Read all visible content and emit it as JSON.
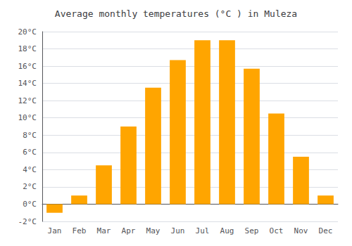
{
  "chart_data": {
    "type": "bar",
    "title": "Average monthly temperatures (°C ) in Muleza",
    "categories": [
      "Jan",
      "Feb",
      "Mar",
      "Apr",
      "May",
      "Jun",
      "Jul",
      "Aug",
      "Sep",
      "Oct",
      "Nov",
      "Dec"
    ],
    "values": [
      -1.0,
      1.0,
      4.5,
      9.0,
      13.5,
      16.7,
      19.0,
      19.0,
      15.7,
      10.5,
      5.5,
      1.0
    ],
    "color": "#FFA500",
    "ylim": [
      -2,
      20
    ],
    "yticks": [
      {
        "value": -2,
        "label": "-2°C"
      },
      {
        "value": 0,
        "label": "0°C"
      },
      {
        "value": 2,
        "label": "2°C"
      },
      {
        "value": 4,
        "label": "4°C"
      },
      {
        "value": 6,
        "label": "6°C"
      },
      {
        "value": 8,
        "label": "8°C"
      },
      {
        "value": 10,
        "label": "10°C"
      },
      {
        "value": 12,
        "label": "12°C"
      },
      {
        "value": 14,
        "label": "14°C"
      },
      {
        "value": 16,
        "label": "16°C"
      },
      {
        "value": 18,
        "label": "18°C"
      },
      {
        "value": 20,
        "label": "20°C"
      }
    ],
    "grid": true
  }
}
